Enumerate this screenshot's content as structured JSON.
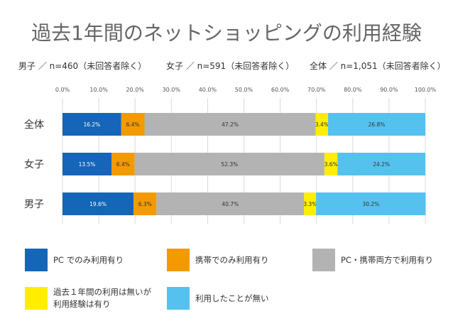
{
  "chart_data": {
    "type": "bar",
    "orientation": "horizontal",
    "stacked": true,
    "title": "過去1年間のネットショッピングの利用経験",
    "subtitles": [
      "男子 ／ n=460（未回答者除く）",
      "女子 ／ n=591（未回答者除く）",
      "全体 ／ n=1,051（未回答者除く）"
    ],
    "categories": [
      "全体",
      "女子",
      "男子"
    ],
    "xlim": [
      0,
      100
    ],
    "x_ticks": [
      "0.0%",
      "10.0%",
      "20.0%",
      "30.0%",
      "40.0%",
      "50.0%",
      "60.0%",
      "70.0%",
      "80.0%",
      "90.0%",
      "100.0%"
    ],
    "grid": true,
    "series": [
      {
        "name": "PC でのみ利用有り",
        "color": "#1565b8",
        "text_color": "#ffffff",
        "values": [
          16.2,
          13.5,
          19.6
        ],
        "labels": [
          "16.2%",
          "13.5%",
          "19.6%"
        ]
      },
      {
        "name": "携帯でのみ利用有り",
        "color": "#f39a00",
        "text_color": "#333333",
        "values": [
          6.4,
          6.4,
          6.3
        ],
        "labels": [
          "6.4%",
          "6.4%",
          "6.3%"
        ]
      },
      {
        "name": "PC・携帯両方で利用有り",
        "color": "#b3b3b3",
        "text_color": "#333333",
        "values": [
          47.2,
          52.3,
          40.7
        ],
        "labels": [
          "47.2%",
          "52.3%",
          "40.7%"
        ]
      },
      {
        "name": "過去１年間の利用は無いが利用経験は有り",
        "legend_lines": [
          "過去１年間の利用は無いが",
          "利用経験は有り"
        ],
        "color": "#ffee00",
        "text_color": "#333333",
        "values": [
          3.4,
          3.6,
          3.3
        ],
        "labels": [
          "3.4%",
          "3.6%",
          "3.3%"
        ]
      },
      {
        "name": "利用したことが無い",
        "color": "#55c1ee",
        "text_color": "#333333",
        "values": [
          26.8,
          24.2,
          30.2
        ],
        "labels": [
          "26.8%",
          "24.2%",
          "30.2%"
        ]
      }
    ],
    "legend": "bottom"
  }
}
